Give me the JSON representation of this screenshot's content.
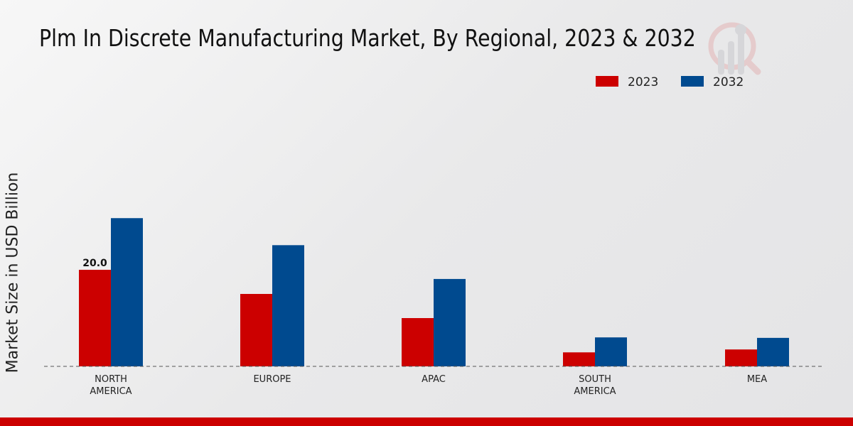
{
  "chart_data": {
    "type": "bar",
    "title": "Plm In Discrete Manufacturing Market, By Regional, 2023 & 2032",
    "xlabel": "",
    "ylabel": "Market Size in USD Billion",
    "categories": [
      "NORTH AMERICA",
      "EUROPE",
      "APAC",
      "SOUTH AMERICA",
      "MEA"
    ],
    "category_lines": [
      [
        "NORTH",
        "AMERICA"
      ],
      [
        "EUROPE"
      ],
      [
        "APAC"
      ],
      [
        "SOUTH",
        "AMERICA"
      ],
      [
        "MEA"
      ]
    ],
    "series": [
      {
        "name": "2023",
        "color": "#cc0000",
        "values": [
          20.0,
          15.0,
          10.0,
          2.9,
          3.5
        ]
      },
      {
        "name": "2032",
        "color": "#004a8f",
        "values": [
          30.7,
          25.1,
          18.1,
          6.0,
          5.9
        ]
      }
    ],
    "data_labels": [
      {
        "series": 0,
        "index": 0,
        "text": "20.0"
      }
    ],
    "ylim": [
      0,
      35
    ],
    "grid": false,
    "legend_position": "top-right"
  }
}
